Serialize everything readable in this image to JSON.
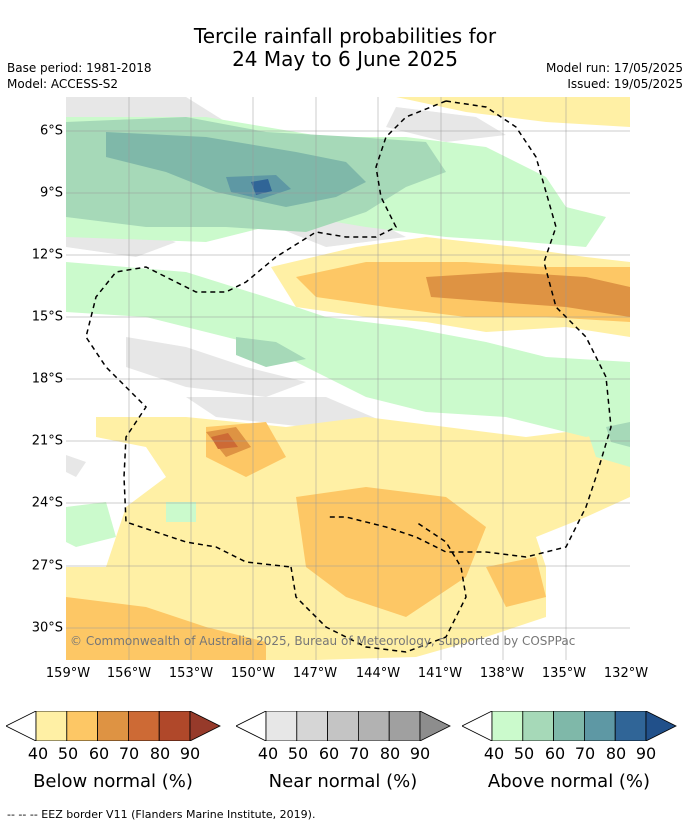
{
  "title_line1": "Tercile rainfall probabilities for",
  "title_line2": "24 May to 6 June 2025",
  "base_period": "Base period: 1981-2018",
  "model": "Model: ACCESS-S2",
  "model_run": "Model run: 17/05/2025",
  "issued": "Issued: 19/05/2025",
  "copyright": "© Commonwealth of Australia 2025, Bureau of Meteorology, supported by COSPPac",
  "lat_labels": [
    "6°S",
    "9°S",
    "12°S",
    "15°S",
    "18°S",
    "21°S",
    "24°S",
    "27°S",
    "30°S"
  ],
  "lon_labels": [
    "159°W",
    "156°W",
    "153°W",
    "150°W",
    "147°W",
    "144°W",
    "141°W",
    "138°W",
    "135°W",
    "132°W"
  ],
  "legends": [
    {
      "label": "Below normal (%)",
      "ticks": [
        "40",
        "50",
        "60",
        "70",
        "80",
        "90"
      ],
      "colors": [
        "#fff0a5",
        "#fdc765",
        "#de9343",
        "#cd6a35",
        "#b0482a",
        "#963a2a"
      ]
    },
    {
      "label": "Near normal (%)",
      "ticks": [
        "40",
        "50",
        "60",
        "70",
        "80",
        "90"
      ],
      "colors": [
        "#e7e7e7",
        "#d6d6d6",
        "#c4c4c4",
        "#b2b2b2",
        "#a0a0a0",
        "#8d8d8d"
      ]
    },
    {
      "label": "Above normal (%)",
      "ticks": [
        "40",
        "50",
        "60",
        "70",
        "80",
        "90"
      ],
      "colors": [
        "#cbfacc",
        "#a6d9b8",
        "#7fb8a9",
        "#5e98a4",
        "#306597",
        "#21508a"
      ]
    }
  ],
  "footnote": "-- -- -- EEZ border V11 (Flanders Marine Institute, 2019)."
}
